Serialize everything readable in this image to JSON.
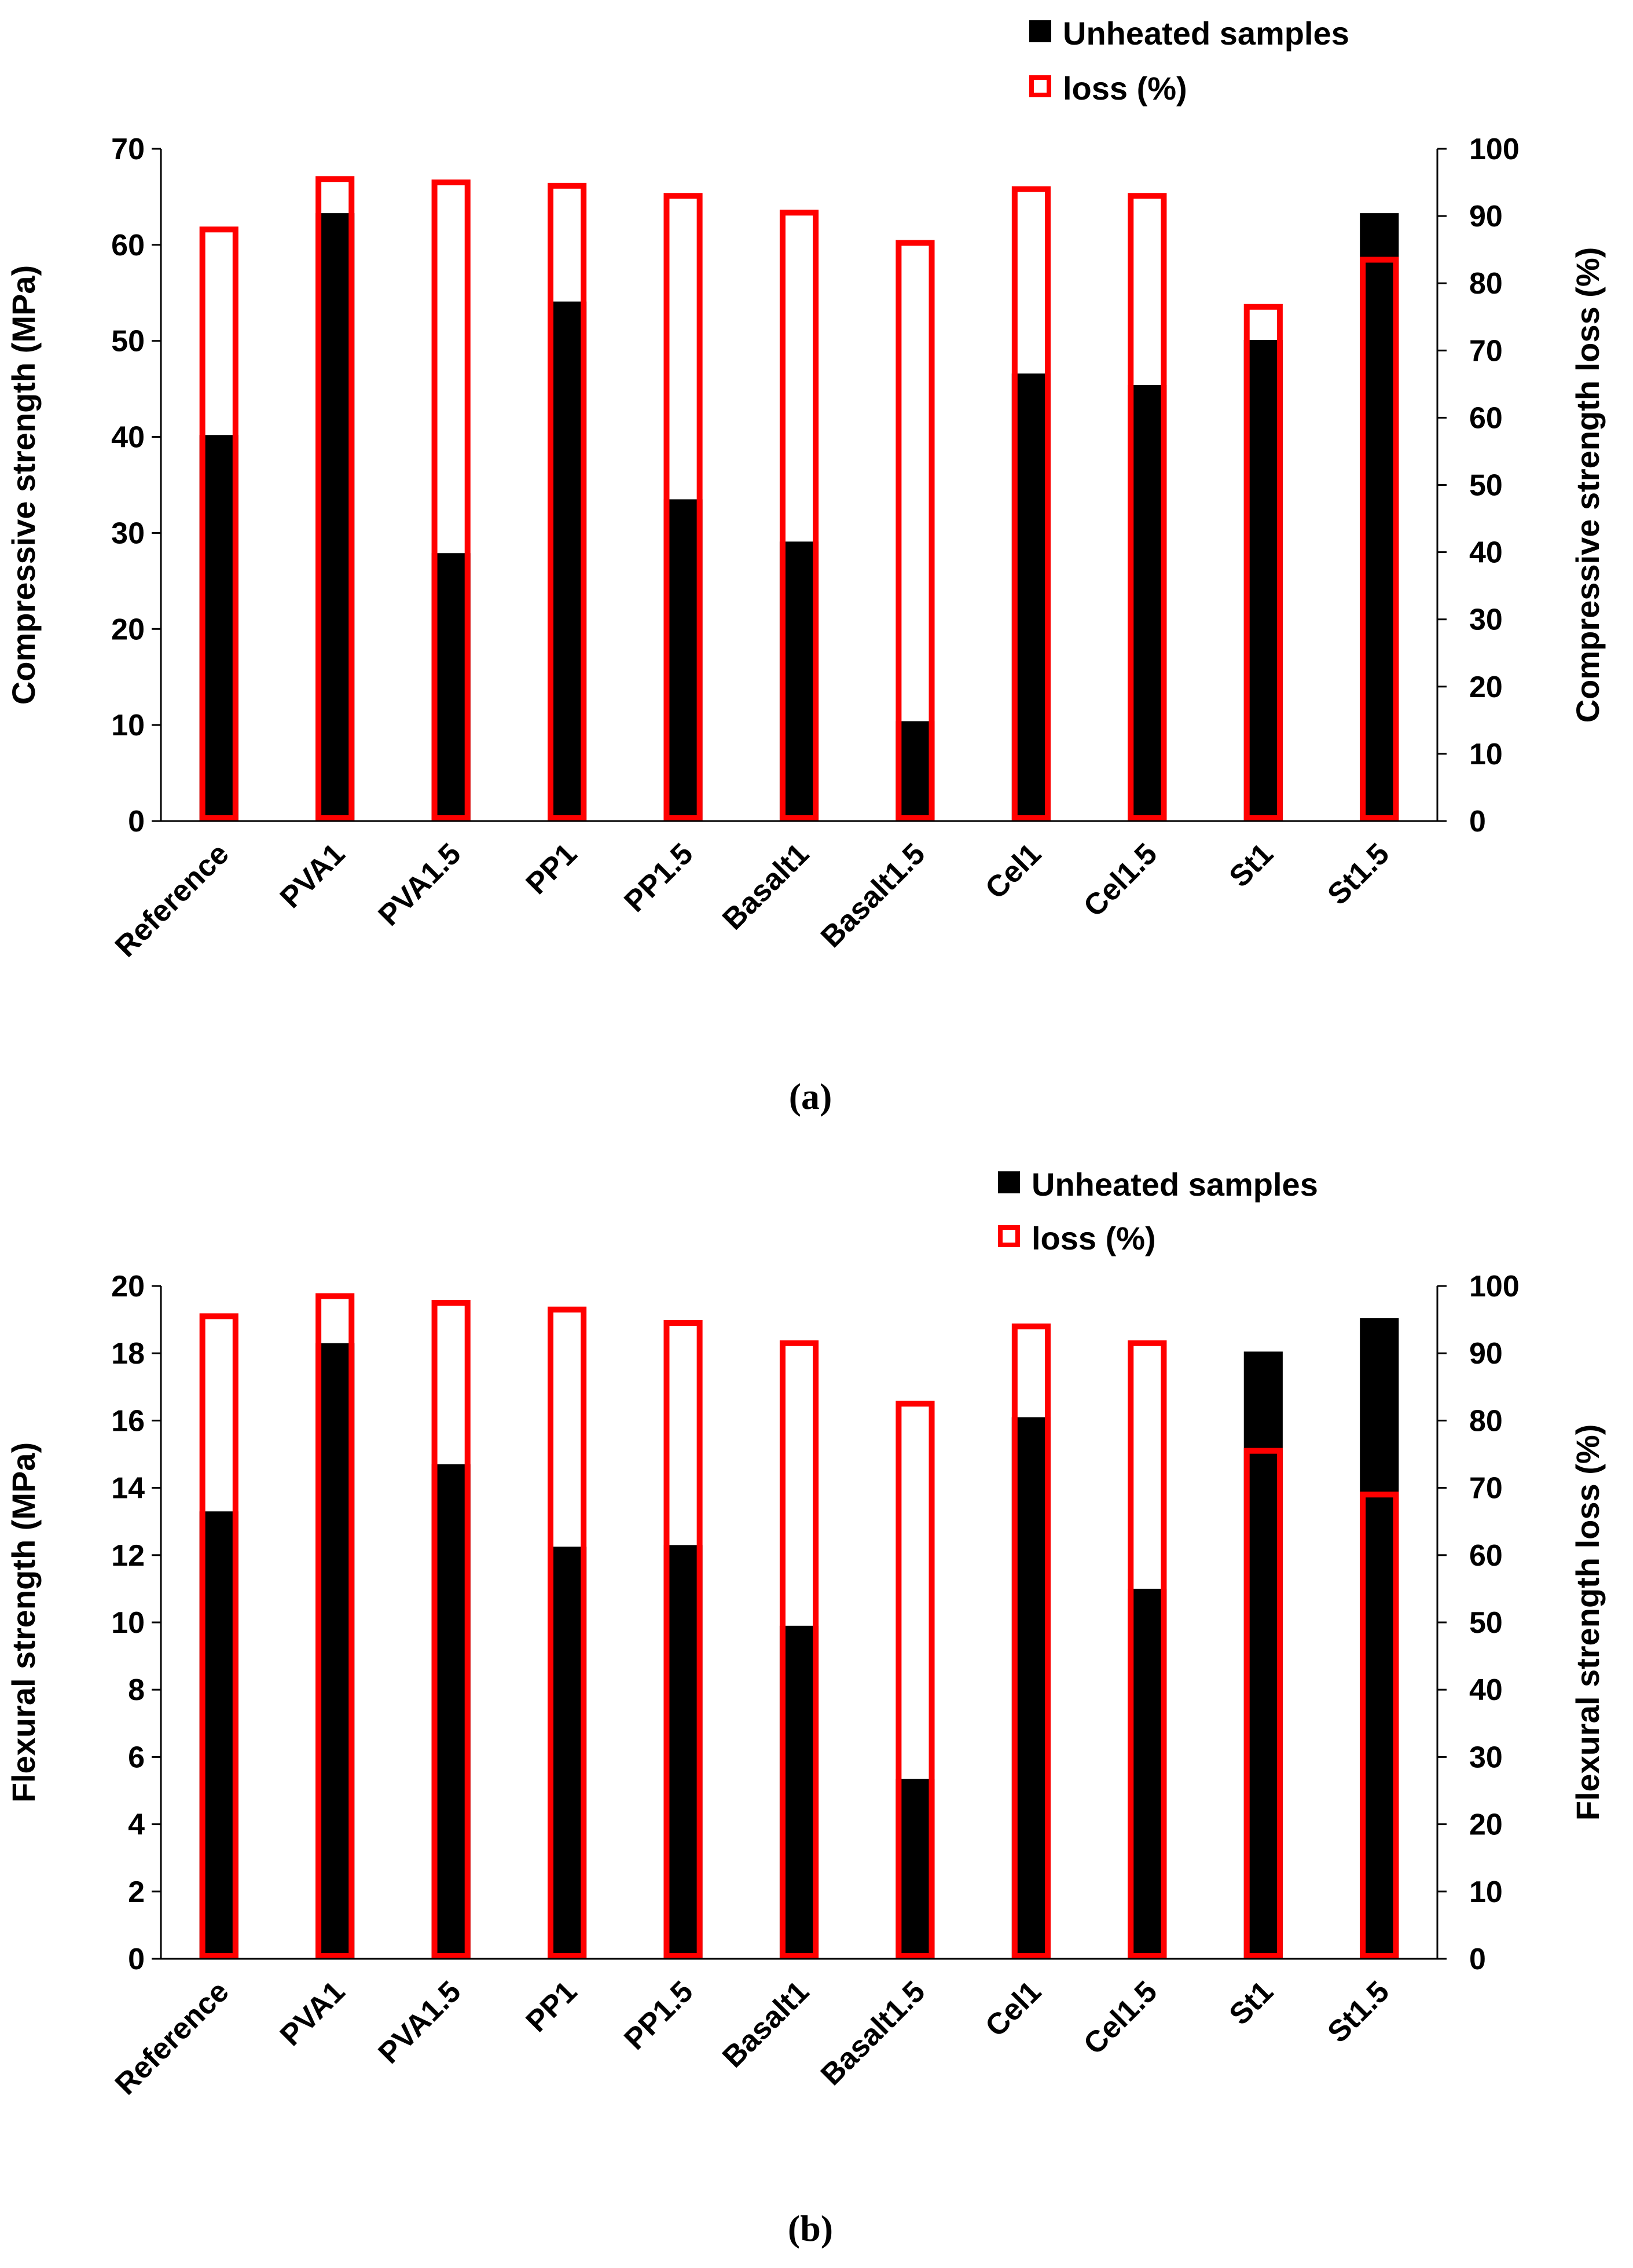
{
  "chart_data": [
    {
      "type": "bar",
      "caption": "(a)",
      "categories": [
        "Reference",
        "PVA1",
        "PVA1.5",
        "PP1",
        "PP1.5",
        "Basalt1",
        "Basalt1.5",
        "Cel1",
        "Cel1.5",
        "St1",
        "St1.5"
      ],
      "series": [
        {
          "name": "Unheated samples",
          "axis": "left",
          "color": "#000000",
          "style": "filled",
          "values": [
            40.2,
            63.3,
            27.9,
            54.1,
            33.5,
            29.1,
            10.4,
            46.6,
            45.4,
            50.1,
            63.3
          ]
        },
        {
          "name": "loss (%)",
          "axis": "right",
          "color": "#ff0000",
          "style": "outline",
          "values": [
            88,
            95.5,
            95,
            94.5,
            93,
            90.5,
            86,
            94,
            93,
            76.5,
            83.5
          ]
        }
      ],
      "ylabel": "Compressive strength (MPa)",
      "ylabel_right": "Compressive strength loss (%)",
      "ylim": [
        0,
        70
      ],
      "yticks": [
        "0",
        "10",
        "20",
        "30",
        "40",
        "50",
        "60",
        "70"
      ],
      "ylim_right": [
        0,
        100
      ],
      "yticks_right": [
        "0",
        "10",
        "20",
        "30",
        "40",
        "50",
        "60",
        "70",
        "80",
        "90",
        "100"
      ],
      "legend": [
        "Unheated samples",
        "loss (%)"
      ],
      "legend_position": "top-right"
    },
    {
      "type": "bar",
      "caption": "(b)",
      "categories": [
        "Reference",
        "PVA1",
        "PVA1.5",
        "PP1",
        "PP1.5",
        "Basalt1",
        "Basalt1.5",
        "Cel1",
        "Cel1.5",
        "St1",
        "St1.5"
      ],
      "series": [
        {
          "name": "Unheated samples",
          "axis": "left",
          "color": "#000000",
          "style": "filled",
          "values": [
            13.3,
            18.3,
            14.7,
            12.25,
            12.3,
            9.9,
            5.35,
            16.1,
            11.0,
            18.05,
            19.05
          ]
        },
        {
          "name": "loss (%)",
          "axis": "right",
          "color": "#ff0000",
          "style": "outline",
          "values": [
            95.5,
            98.5,
            97.5,
            96.5,
            94.5,
            91.5,
            82.5,
            94,
            91.5,
            75.5,
            69
          ]
        }
      ],
      "ylabel": "Flexural strength (MPa)",
      "ylabel_right": "Flexural strength loss (%)",
      "ylim": [
        0,
        20
      ],
      "yticks": [
        "0",
        "2",
        "4",
        "6",
        "8",
        "10",
        "12",
        "14",
        "16",
        "18",
        "20"
      ],
      "ylim_right": [
        0,
        100
      ],
      "yticks_right": [
        "0",
        "10",
        "20",
        "30",
        "40",
        "50",
        "60",
        "70",
        "80",
        "90",
        "100"
      ],
      "legend": [
        "Unheated samples",
        "loss (%)"
      ],
      "legend_position": "top-right"
    }
  ]
}
